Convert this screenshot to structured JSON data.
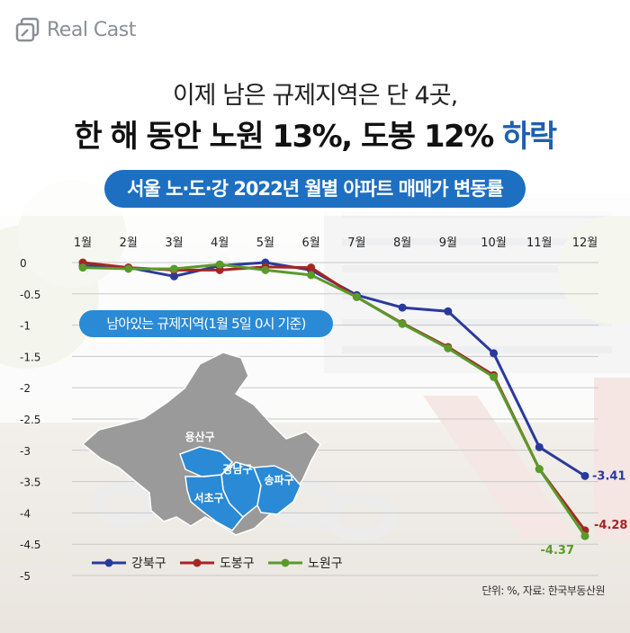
{
  "brand": {
    "name": "Real Cast"
  },
  "headline": {
    "line1": "이제 남은 규제지역은 단 4곳,",
    "line2_main": "한 해 동안 노원 13%, 도봉 12% ",
    "line2_highlight": "하락"
  },
  "subtitle": "서울 노·도·강 2022년 월별 아파트 매매가 변동률",
  "map": {
    "title": "남아있는 규제지역(1월 5일 0시 기준)",
    "districts": [
      "용산구",
      "강남구",
      "송파구",
      "서초구"
    ],
    "colors": {
      "highlight": "#2a8ad6",
      "base": "#9a9a9a"
    }
  },
  "source_note": "단위: %, 자료: 한국부동산원",
  "colors": {
    "accent": "#1d6fc2",
    "highlight_text": "#1f5fb0"
  },
  "chart_data": {
    "type": "line",
    "categories": [
      "1월",
      "2월",
      "3월",
      "4월",
      "5월",
      "6월",
      "7월",
      "8월",
      "9월",
      "10월",
      "11월",
      "12월"
    ],
    "ylim": [
      -5,
      0
    ],
    "yticks": [
      "0",
      "-0.5",
      "-1",
      "-1.5",
      "-2",
      "-2.5",
      "-3",
      "-3.5",
      "-4",
      "-4.5",
      "-5"
    ],
    "ytick_values": [
      0,
      -0.5,
      -1,
      -1.5,
      -2,
      -2.5,
      -3,
      -3.5,
      -4,
      -4.5,
      -5
    ],
    "grid": true,
    "legend_position": "bottom-left",
    "series": [
      {
        "name": "강북구",
        "color": "#2a3a9c",
        "values": [
          -0.05,
          -0.08,
          -0.22,
          -0.05,
          0.0,
          -0.12,
          -0.52,
          -0.72,
          -0.78,
          -1.45,
          -2.95,
          -3.41
        ],
        "end_label": "-3.41"
      },
      {
        "name": "도봉구",
        "color": "#a52525",
        "values": [
          0.0,
          -0.08,
          -0.12,
          -0.12,
          -0.07,
          -0.08,
          -0.55,
          -0.97,
          -1.35,
          -1.8,
          -3.3,
          -4.28
        ],
        "end_label": "-4.28"
      },
      {
        "name": "노원구",
        "color": "#5a9a2a",
        "values": [
          -0.08,
          -0.1,
          -0.1,
          -0.03,
          -0.12,
          -0.2,
          -0.55,
          -0.98,
          -1.37,
          -1.83,
          -3.3,
          -4.37
        ],
        "end_label": "-4.37"
      }
    ]
  }
}
